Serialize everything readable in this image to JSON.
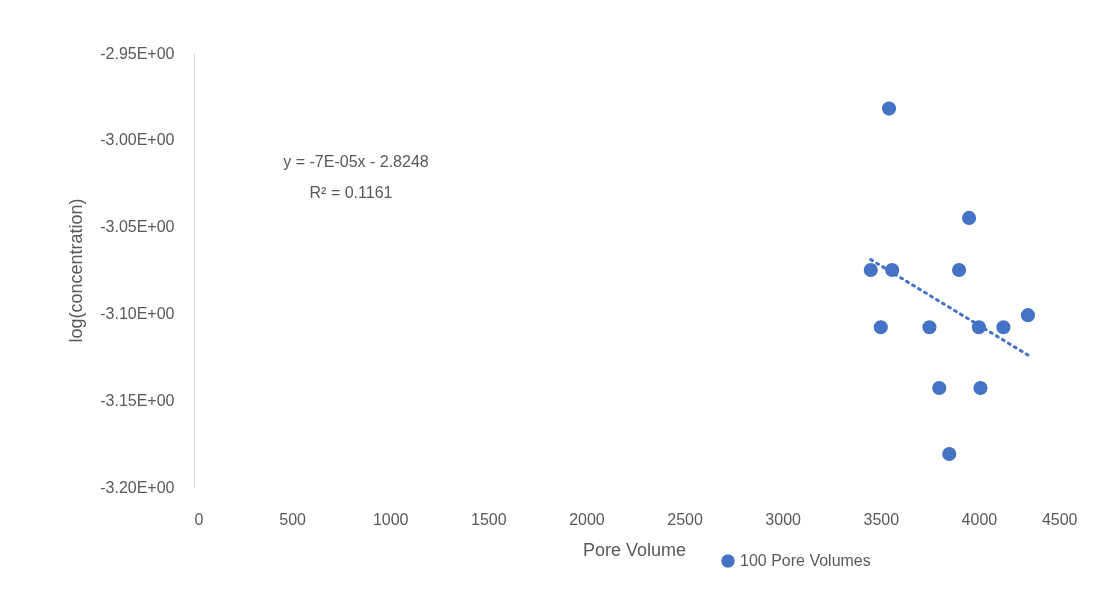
{
  "chart_data": {
    "type": "scatter",
    "xlabel": "Pore Volume",
    "ylabel": "log(concentration)",
    "xlim": [
      0,
      4500
    ],
    "xticks": [
      0,
      500,
      1000,
      1500,
      2000,
      2500,
      3000,
      3500,
      4000,
      4500
    ],
    "ylim": [
      -3.2,
      -2.95
    ],
    "yticks": [
      {
        "value": -3.2,
        "label": "-3.20E+00"
      },
      {
        "value": -3.15,
        "label": "-3.15E+00"
      },
      {
        "value": -3.1,
        "label": "-3.10E+00"
      },
      {
        "value": -3.05,
        "label": "-3.05E+00"
      },
      {
        "value": -3.0,
        "label": "-3.00E+00"
      },
      {
        "value": -2.95,
        "label": "-2.95E+00"
      }
    ],
    "grid": false,
    "legend": "bottom",
    "annotations": [
      "y = -7E-05x - 2.8248",
      "R² = 0.1161"
    ],
    "series": [
      {
        "name": "100 Pore Volumes",
        "color": "#4472c4",
        "marker": "circle",
        "x": [
          3542,
          3950,
          3449,
          3558,
          3899,
          4250,
          3500,
          3748,
          4000,
          4125,
          3798,
          4008,
          3849
        ],
        "values": [
          -2.982,
          -3.045,
          -3.075,
          -3.075,
          -3.075,
          -3.101,
          -3.108,
          -3.108,
          -3.108,
          -3.108,
          -3.143,
          -3.143,
          -3.181
        ]
      },
      {
        "type": "line",
        "color": "#4472c4",
        "line_style": "dotted",
        "x": [
          3449,
          4250
        ],
        "values": [
          -3.069,
          -3.124
        ]
      }
    ]
  }
}
